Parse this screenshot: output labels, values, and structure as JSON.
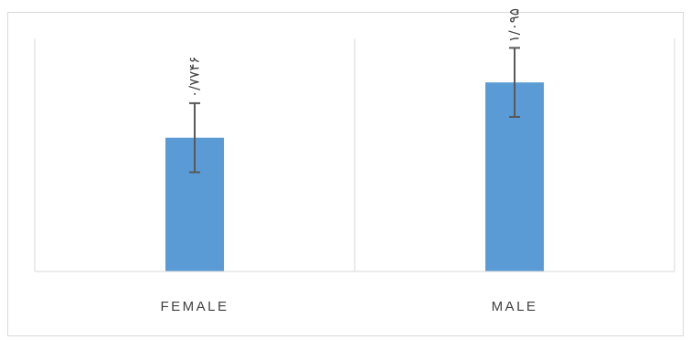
{
  "chart_data": {
    "type": "bar",
    "title": "",
    "xlabel": "",
    "ylabel": "",
    "categories": [
      "FEMALE",
      "MALE"
    ],
    "values": [
      0.7746,
      1.095
    ],
    "error": [
      0.2,
      0.2
    ],
    "data_labels": [
      "۰/۷۷۴۶",
      "۱/۰۹۵"
    ],
    "ylim": [
      0,
      1.35
    ],
    "grid": "vertical category separators",
    "legend": "none",
    "bar_color": "#5b9bd5",
    "error_color": "#595959",
    "axis_color": "#d9d9d9"
  }
}
